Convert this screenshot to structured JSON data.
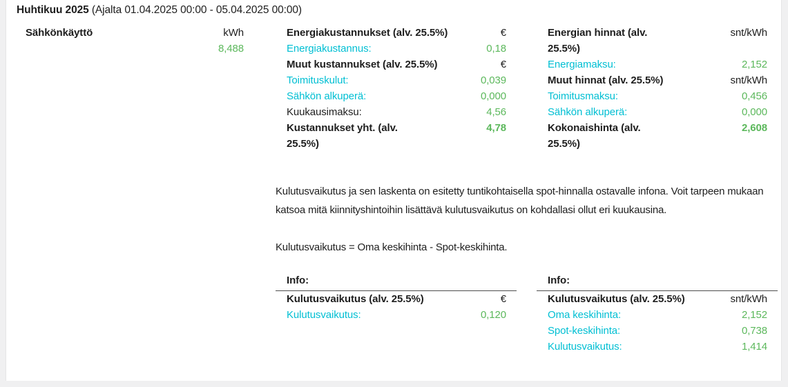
{
  "header": {
    "title": "Huhtikuu 2025",
    "subtitle": "(Ajalta 01.04.2025 00:00 - 05.04.2025 00:00)"
  },
  "colors": {
    "accent_teal": "#00bfd3",
    "value_green": "#5cb85c",
    "text_dark": "#1e1e1e",
    "frame_gray": "#f0f0f1",
    "card_white": "#ffffff"
  },
  "consumption": {
    "label": "Sähkönkäyttö",
    "unit": "kWh",
    "value": "8,488"
  },
  "costs": {
    "rows": [
      {
        "label": "Energiakustannukset (alv. 25.5%)",
        "value": "€"
      },
      {
        "label": "Energiakustannus:",
        "value": "0,18"
      },
      {
        "label": "Muut kustannukset (alv. 25.5%)",
        "value": "€"
      },
      {
        "label": "Toimituskulut:",
        "value": "0,039"
      },
      {
        "label": "Sähkön alkuperä:",
        "value": "0,000"
      },
      {
        "label": "Kuukausimaksu:",
        "value": "4,56"
      },
      {
        "label": "Kustannukset yht. (alv. 25.5%)",
        "value": "4,78"
      }
    ]
  },
  "prices": {
    "rows": [
      {
        "label": "Energian hinnat (alv. 25.5%)",
        "value": "snt/kWh"
      },
      {
        "label": "Energiamaksu:",
        "value": "2,152"
      },
      {
        "label": "Muut hinnat (alv. 25.5%)",
        "value": "snt/kWh"
      },
      {
        "label": "Toimitusmaksu:",
        "value": "0,456"
      },
      {
        "label": "Sähkön alkuperä:",
        "value": "0,000"
      },
      {
        "label": "Kokonaishinta (alv. 25.5%)",
        "value": "2,608"
      }
    ]
  },
  "description": {
    "paragraph": "Kulutusvaikutus ja sen laskenta on esitetty tuntikohtaisella spot-hinnalla ostavalle infona. Voit tarpeen mukaan katsoa mitä kiinnityshintoihin lisättävä kulutusvaikutus on kohdallasi ollut eri kuukausina.",
    "formula": "Kulutusvaikutus = Oma keskihinta - Spot-keskihinta."
  },
  "info_eur": {
    "title": "Info:",
    "rows": [
      {
        "label": "Kulutusvaikutus (alv. 25.5%)",
        "value": "€"
      },
      {
        "label": "Kulutusvaikutus:",
        "value": "0,120"
      }
    ]
  },
  "info_snt": {
    "title": "Info:",
    "rows": [
      {
        "label": "Kulutusvaikutus (alv. 25.5%)",
        "value": "snt/kWh"
      },
      {
        "label": "Oma keskihinta:",
        "value": "2,152"
      },
      {
        "label": "Spot-keskihinta:",
        "value": "0,738"
      },
      {
        "label": "Kulutusvaikutus:",
        "value": "1,414"
      }
    ]
  }
}
